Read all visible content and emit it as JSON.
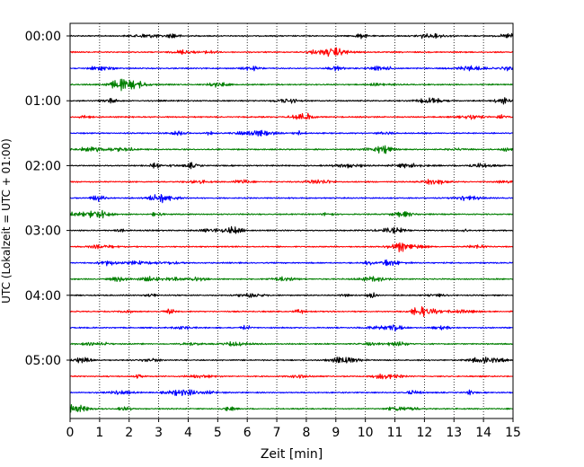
{
  "chart_data": {
    "type": "line",
    "title": "",
    "xlabel": "Zeit  [min]",
    "ylabel": "UTC (Lokalzeit = UTC + 01:00)",
    "xlim": [
      0,
      15
    ],
    "x_ticks": [
      "0",
      "1",
      "2",
      "3",
      "4",
      "5",
      "6",
      "7",
      "8",
      "9",
      "10",
      "11",
      "12",
      "13",
      "14",
      "15"
    ],
    "y_tick_labels": [
      "00:00",
      "01:00",
      "02:00",
      "03:00",
      "04:00",
      "05:00"
    ],
    "trace_interval_minutes": 15,
    "trace_count": 24,
    "trace_colors": [
      "#000000",
      "#ff0000",
      "#0000ff",
      "#007f00"
    ],
    "vertical_grid": "dotted",
    "series": [
      {
        "start": "00:00",
        "color": "#000000"
      },
      {
        "start": "00:15",
        "color": "#ff0000"
      },
      {
        "start": "00:30",
        "color": "#0000ff"
      },
      {
        "start": "00:45",
        "color": "#007f00"
      },
      {
        "start": "01:00",
        "color": "#000000"
      },
      {
        "start": "01:15",
        "color": "#ff0000"
      },
      {
        "start": "01:30",
        "color": "#0000ff"
      },
      {
        "start": "01:45",
        "color": "#007f00"
      },
      {
        "start": "02:00",
        "color": "#000000"
      },
      {
        "start": "02:15",
        "color": "#ff0000"
      },
      {
        "start": "02:30",
        "color": "#0000ff"
      },
      {
        "start": "02:45",
        "color": "#007f00"
      },
      {
        "start": "03:00",
        "color": "#000000"
      },
      {
        "start": "03:15",
        "color": "#ff0000"
      },
      {
        "start": "03:30",
        "color": "#0000ff"
      },
      {
        "start": "03:45",
        "color": "#007f00"
      },
      {
        "start": "04:00",
        "color": "#000000"
      },
      {
        "start": "04:15",
        "color": "#ff0000"
      },
      {
        "start": "04:30",
        "color": "#0000ff"
      },
      {
        "start": "04:45",
        "color": "#007f00"
      },
      {
        "start": "05:00",
        "color": "#000000"
      },
      {
        "start": "05:15",
        "color": "#ff0000"
      },
      {
        "start": "05:30",
        "color": "#0000ff"
      },
      {
        "start": "05:45",
        "color": "#007f00"
      }
    ]
  }
}
